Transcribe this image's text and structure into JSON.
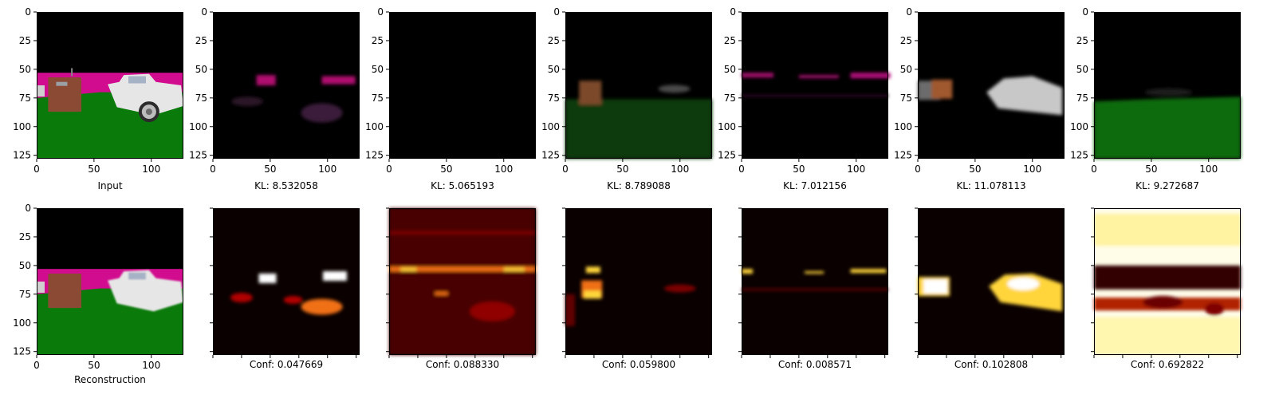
{
  "chart_data": {
    "type": "image-grid",
    "rows": 2,
    "cols": 7,
    "axis": {
      "x_ticks": [
        0,
        50,
        100
      ],
      "y_ticks": [
        0,
        25,
        50,
        75,
        100,
        125
      ],
      "xlim": [
        0,
        128
      ],
      "ylim": [
        128,
        0
      ]
    },
    "top_row": [
      {
        "label": "Input",
        "kind": "input_scene"
      },
      {
        "label": "KL: 8.532058",
        "kind": "slot_pink"
      },
      {
        "label": "KL: 5.065193",
        "kind": "slot_empty"
      },
      {
        "label": "KL: 8.789088",
        "kind": "slot_crate_ground"
      },
      {
        "label": "KL: 7.012156",
        "kind": "slot_pink_thin"
      },
      {
        "label": "KL: 11.078113",
        "kind": "slot_car_crate"
      },
      {
        "label": "KL: 9.272687",
        "kind": "slot_ground"
      }
    ],
    "bottom_row": [
      {
        "label": "Reconstruction",
        "kind": "recon_scene"
      },
      {
        "label": "Conf: 0.047669",
        "kind": "heat_pink"
      },
      {
        "label": "Conf: 0.088330",
        "kind": "heat_empty"
      },
      {
        "label": "Conf: 0.059800",
        "kind": "heat_crate"
      },
      {
        "label": "Conf: 0.008571",
        "kind": "heat_pink_thin"
      },
      {
        "label": "Conf: 0.102808",
        "kind": "heat_car"
      },
      {
        "label": "Conf: 0.692822",
        "kind": "heat_ground"
      }
    ]
  }
}
